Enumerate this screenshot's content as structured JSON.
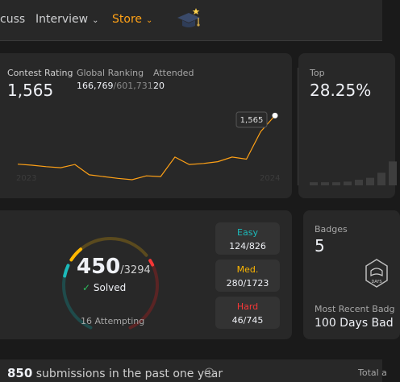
{
  "nav": {
    "items": [
      {
        "label": "cuss"
      },
      {
        "label": "Interview"
      },
      {
        "label": "Store"
      }
    ]
  },
  "contest": {
    "rating_label": "Contest Rating",
    "rating_value": "1,565",
    "ranking_label": "Global Ranking",
    "ranking_value": "166,769",
    "ranking_total": "/601,731",
    "attended_label": "Attended",
    "attended_value": "20",
    "year_start": "2023",
    "year_end": "2024",
    "tooltip_value": "1,565",
    "top_label": "Top",
    "top_value": "28.25%"
  },
  "chart_data": {
    "type": "line",
    "x": [
      "2023",
      "",
      "",
      "",
      "",
      "",
      "",
      "",
      "",
      "",
      "",
      "",
      "",
      "",
      "",
      "",
      "",
      "",
      "2024"
    ],
    "series": [
      {
        "values": [
          1428,
          1425,
          1421,
          1418,
          1427,
          1398,
          1393,
          1388,
          1384,
          1395,
          1393,
          1448,
          1427,
          1430,
          1435,
          1448,
          1442,
          1520,
          1565
        ]
      }
    ],
    "ylim": [
      1350,
      1600
    ]
  },
  "histogram": {
    "bars": [
      0.05,
      0.05,
      0.05,
      0.06,
      0.09,
      0.12,
      0.2,
      0.38,
      0.62,
      1.0
    ]
  },
  "solved": {
    "count": "450",
    "total": "/3294",
    "solved_label": "Solved",
    "attempting": "16 Attempting",
    "easy_label": "Easy",
    "easy_value": "124/826",
    "medium_label": "Med.",
    "medium_value": "280/1723",
    "hard_label": "Hard",
    "hard_value": "46/745",
    "easy_fraction": 0.15,
    "medium_fraction": 0.163,
    "hard_fraction": 0.062
  },
  "badges": {
    "label": "Badges",
    "count": "5",
    "recent_label": "Most Recent Badg",
    "recent_value": "100 Days Bad",
    "badge_text": "DAYS"
  },
  "submissions": {
    "count": "850",
    "text": "submissions in the past one year",
    "total_label": "Total a"
  },
  "colors": {
    "accent": "#ffa116",
    "easy": "#1cbaba",
    "medium": "#ffb700",
    "hard": "#f63737"
  }
}
